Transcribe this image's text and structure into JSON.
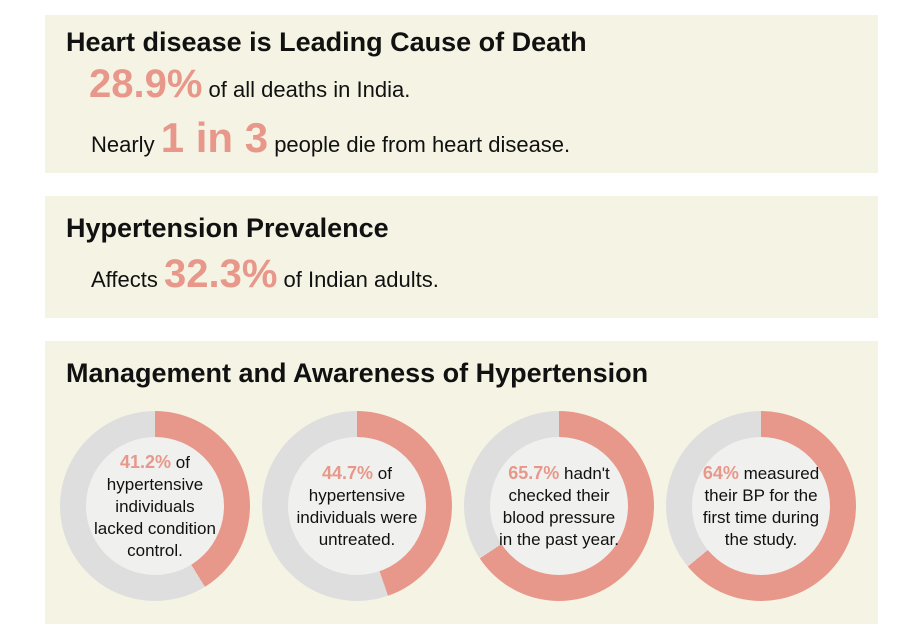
{
  "heart": {
    "title": "Heart disease is Leading Cause of Death",
    "stat1_value": "28.9%",
    "stat1_suffix": " of all deaths in India.",
    "stat2_prefix": "Nearly ",
    "stat2_value": "1 in 3",
    "stat2_suffix": " people die from heart disease."
  },
  "hypertension": {
    "title": "Hypertension Prevalence",
    "prefix": "Affects ",
    "value": "32.3%",
    "suffix": " of Indian adults."
  },
  "management": {
    "title": "Management and Awareness of Hypertension",
    "donuts": [
      {
        "pct": "41.2%",
        "fraction": 0.412,
        "text_a": " of",
        "text_b": "hypertensive individuals lacked condition control."
      },
      {
        "pct": "44.7%",
        "fraction": 0.447,
        "text_a": " of",
        "text_b": "hypertensive individuals were untreated."
      },
      {
        "pct": "65.7%",
        "fraction": 0.657,
        "text_a": " hadn't",
        "text_b": "checked their blood pressure in the past year."
      },
      {
        "pct": "64%",
        "fraction": 0.64,
        "text_a": " measured",
        "text_b": "their BP for the first time during the study."
      }
    ]
  },
  "colors": {
    "accent": "#e8988a",
    "track": "#dedede",
    "panel": "#f5f4e4",
    "donut_center": "#f0f0ef"
  }
}
